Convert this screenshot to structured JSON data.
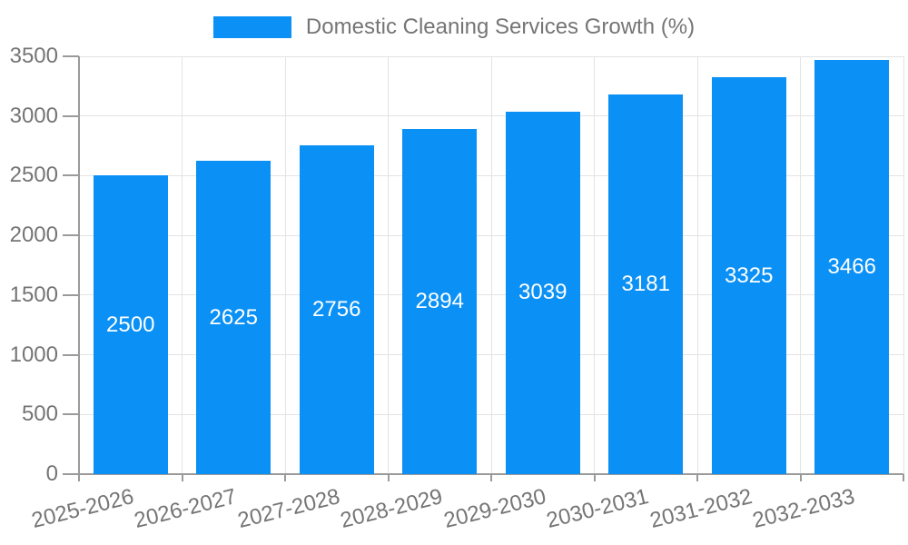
{
  "chart_data": {
    "type": "bar",
    "title": "Domestic Cleaning Services Growth (%)",
    "legend": [
      "Domestic Cleaning Services Growth (%)"
    ],
    "legend_position": "top-center",
    "categories": [
      "2025-2026",
      "2026-2027",
      "2027-2028",
      "2028-2029",
      "2029-2030",
      "2030-2031",
      "2031-2032",
      "2032-2033"
    ],
    "values": [
      2500,
      2625,
      2756,
      2894,
      3039,
      3181,
      3325,
      3466
    ],
    "value_labels_shown": true,
    "xlabel": "",
    "ylabel": "",
    "ylim": [
      0,
      3500
    ],
    "yticks": [
      0,
      500,
      1000,
      1500,
      2000,
      2500,
      3000,
      3500
    ],
    "grid": "horizontal-and-vertical",
    "x_tick_label_rotation_deg": -14,
    "colors": {
      "bar": "#0b90f5",
      "axis_text": "#757575",
      "value_label_text": "#ffffff",
      "grid_line": "#e3e3e3",
      "axis_line": "#9a9a9a",
      "background": "#ffffff"
    }
  }
}
